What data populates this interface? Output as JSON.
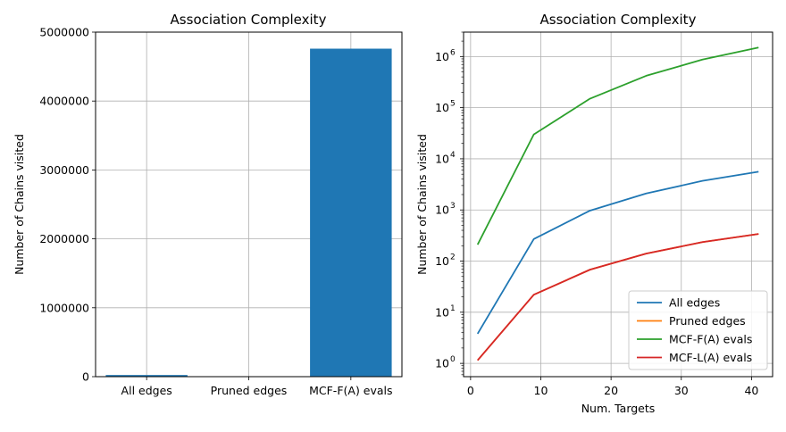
{
  "chart_data": [
    {
      "type": "bar",
      "title": "Association Complexity",
      "xlabel": "",
      "ylabel": "Number of Chains visited",
      "categories": [
        "All edges",
        "Pruned edges",
        "MCF-F(A) evals"
      ],
      "values": [
        24000,
        340,
        4760000
      ],
      "ylim": [
        0,
        5000000
      ],
      "yticks": [
        0,
        1000000,
        2000000,
        3000000,
        4000000,
        5000000
      ],
      "ytick_labels": [
        "0",
        "1000000",
        "2000000",
        "3000000",
        "4000000",
        "5000000"
      ],
      "bar_color": "#1f77b4",
      "grid": true
    },
    {
      "type": "line",
      "title": "Association Complexity",
      "xlabel": "Num. Targets",
      "ylabel": "Number of Chains visited",
      "x": [
        1,
        9,
        17,
        25,
        33,
        41
      ],
      "xlim": [
        -1,
        43
      ],
      "xticks": [
        0,
        10,
        20,
        30,
        40
      ],
      "xtick_labels": [
        "0",
        "10",
        "20",
        "30",
        "40"
      ],
      "yscale": "log",
      "ylim": [
        0.55,
        3000000
      ],
      "yticks": [
        1,
        10,
        100,
        1000,
        10000,
        100000,
        1000000
      ],
      "ytick_labels": [
        {
          "base": "10",
          "exp": "0"
        },
        {
          "base": "10",
          "exp": "1"
        },
        {
          "base": "10",
          "exp": "2"
        },
        {
          "base": "10",
          "exp": "3"
        },
        {
          "base": "10",
          "exp": "4"
        },
        {
          "base": "10",
          "exp": "5"
        },
        {
          "base": "10",
          "exp": "6"
        }
      ],
      "series": [
        {
          "name": "All edges",
          "color": "#1f77b4",
          "values": [
            3.8,
            270,
            970,
            2100,
            3700,
            5600
          ]
        },
        {
          "name": "Pruned edges",
          "color": "#ff7f0e",
          "values": [
            1.15,
            22,
            68,
            140,
            235,
            340
          ]
        },
        {
          "name": "MCF-F(A) evals",
          "color": "#2ca02c",
          "values": [
            210,
            30000,
            150000,
            420000,
            870000,
            1500000
          ]
        },
        {
          "name": "MCF-L(A) evals",
          "color": "#d62728",
          "values": [
            1.15,
            22,
            68,
            140,
            235,
            340
          ]
        }
      ],
      "legend": "lower-right",
      "grid": true
    }
  ]
}
